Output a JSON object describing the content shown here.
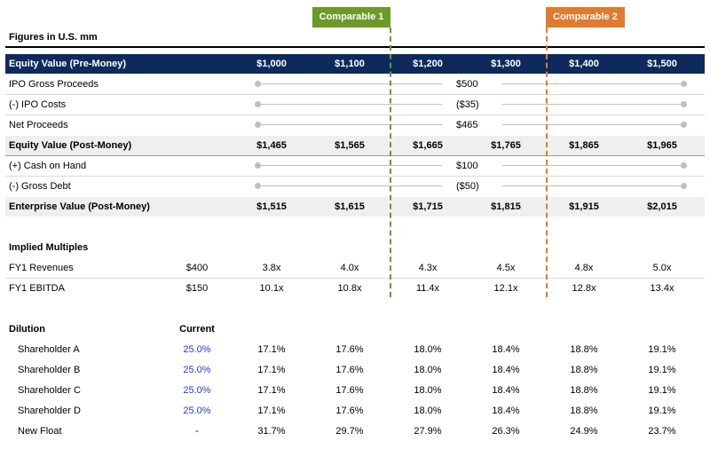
{
  "colors": {
    "navy": "#0e2a5c",
    "green": "#6b9a2a",
    "orange": "#e07a2e",
    "input_blue": "#1f3fd1"
  },
  "tags": {
    "comp1": "Comparable 1",
    "comp2": "Comparable 2"
  },
  "header": {
    "title": "Figures in U.S. mm"
  },
  "pre_money": {
    "label": "Equity Value (Pre-Money)",
    "values": [
      "$1,000",
      "$1,100",
      "$1,200",
      "$1,300",
      "$1,400",
      "$1,500"
    ]
  },
  "ipo_gross": {
    "label": "IPO Gross Proceeds",
    "value": "$500",
    "slider_level": 0.5
  },
  "ipo_costs": {
    "label": "(-) IPO Costs",
    "value": "($35)",
    "slider_level": 0.5
  },
  "net_proceeds": {
    "label": "Net Proceeds",
    "value": "$465",
    "slider_level": 0.5
  },
  "post_money": {
    "label": "Equity Value (Post-Money)",
    "values": [
      "$1,465",
      "$1,565",
      "$1,665",
      "$1,765",
      "$1,865",
      "$1,965"
    ]
  },
  "cash": {
    "label": "(+) Cash on Hand",
    "value": "$100",
    "slider_level": 0.5
  },
  "debt": {
    "label": "(-) Gross Debt",
    "value": "($50)",
    "slider_level": 0.5
  },
  "ev": {
    "label": "Enterprise Value (Post-Money)",
    "values": [
      "$1,515",
      "$1,615",
      "$1,715",
      "$1,815",
      "$1,915",
      "$2,015"
    ]
  },
  "multiples": {
    "title": "Implied Multiples",
    "rows": [
      {
        "label": "FY1 Revenues",
        "base": "$400",
        "values": [
          "3.8x",
          "4.0x",
          "4.3x",
          "4.5x",
          "4.8x",
          "5.0x"
        ]
      },
      {
        "label": "FY1 EBITDA",
        "base": "$150",
        "values": [
          "10.1x",
          "10.8x",
          "11.4x",
          "12.1x",
          "12.8x",
          "13.4x"
        ]
      }
    ]
  },
  "dilution": {
    "title": "Dilution",
    "current_header": "Current",
    "rows": [
      {
        "label": "Shareholder A",
        "current": "25.0%",
        "values": [
          "17.1%",
          "17.6%",
          "18.0%",
          "18.4%",
          "18.8%",
          "19.1%"
        ]
      },
      {
        "label": "Shareholder B",
        "current": "25.0%",
        "values": [
          "17.1%",
          "17.6%",
          "18.0%",
          "18.4%",
          "18.8%",
          "19.1%"
        ]
      },
      {
        "label": "Shareholder C",
        "current": "25.0%",
        "values": [
          "17.1%",
          "17.6%",
          "18.0%",
          "18.4%",
          "18.8%",
          "19.1%"
        ]
      },
      {
        "label": "Shareholder D",
        "current": "25.0%",
        "values": [
          "17.1%",
          "17.6%",
          "18.0%",
          "18.4%",
          "18.8%",
          "19.1%"
        ]
      },
      {
        "label": "New Float",
        "current": "-",
        "values": [
          "31.7%",
          "29.7%",
          "27.9%",
          "26.3%",
          "24.9%",
          "23.7%"
        ]
      }
    ]
  }
}
